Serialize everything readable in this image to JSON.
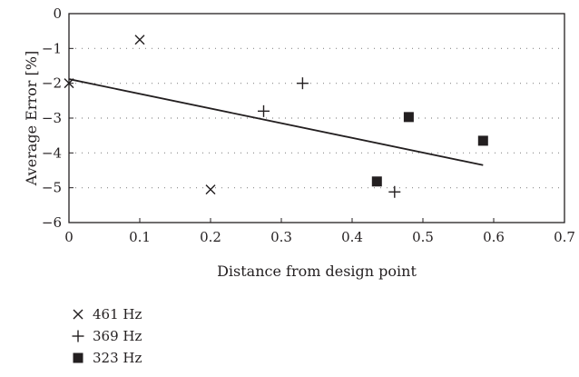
{
  "chart_data": {
    "type": "scatter",
    "title": "",
    "xlabel": "Distance from design point",
    "ylabel": "Average Error [%]",
    "xlim": [
      0,
      0.7
    ],
    "ylim": [
      -6,
      0
    ],
    "x_ticks": [
      {
        "value": 0,
        "label": "0"
      },
      {
        "value": 0.1,
        "label": "0.1"
      },
      {
        "value": 0.2,
        "label": "0.2"
      },
      {
        "value": 0.3,
        "label": "0.3"
      },
      {
        "value": 0.4,
        "label": "0.4"
      },
      {
        "value": 0.5,
        "label": "0.5"
      },
      {
        "value": 0.6,
        "label": "0.6"
      },
      {
        "value": 0.7,
        "label": "0.7"
      }
    ],
    "y_ticks": [
      {
        "value": 0,
        "label": "0"
      },
      {
        "value": -1,
        "label": "−1"
      },
      {
        "value": -2,
        "label": "−2"
      },
      {
        "value": -3,
        "label": "−3"
      },
      {
        "value": -4,
        "label": "−4"
      },
      {
        "value": -5,
        "label": "−5"
      },
      {
        "value": -6,
        "label": "−6"
      }
    ],
    "grid": "dotted horizontal",
    "legend_position": "bottom-left",
    "series": [
      {
        "name": "461 Hz",
        "marker": "x",
        "points": [
          [
            0.0,
            -2.0
          ],
          [
            0.1,
            -0.75
          ],
          [
            0.2,
            -5.05
          ]
        ]
      },
      {
        "name": "369 Hz",
        "marker": "plus",
        "points": [
          [
            0.275,
            -2.8
          ],
          [
            0.33,
            -2.0
          ],
          [
            0.46,
            -5.12
          ]
        ]
      },
      {
        "name": "323 Hz",
        "marker": "square",
        "points": [
          [
            0.435,
            -4.82
          ],
          [
            0.48,
            -2.97
          ],
          [
            0.585,
            -3.65
          ]
        ]
      }
    ],
    "trendline": {
      "x": [
        0,
        0.585
      ],
      "y": [
        -1.88,
        -4.35
      ]
    }
  },
  "colors": {
    "ink": "#231f20",
    "grid": "#8a8a8a",
    "background": "#ffffff"
  }
}
